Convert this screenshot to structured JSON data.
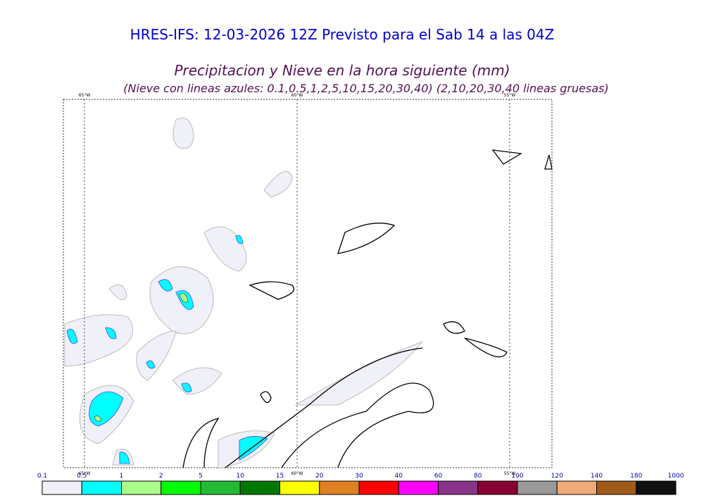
{
  "header": {
    "title": "HRES-IFS: 12-03-2026 12Z Previsto para el Sab 14 a las 04Z",
    "subtitle": "Precipitacion y Nieve en la hora siguiente (mm)",
    "note": "(Nieve con lineas azules: 0.1,0.5,1,2,5,10,15,20,30,40)  (2,10,20,30,40 lineas gruesas)"
  },
  "map": {
    "meridians": [
      "65°W",
      "60°W",
      "55°W"
    ]
  },
  "legend": {
    "labels": [
      0.1,
      0.5,
      1,
      2,
      5,
      10,
      15,
      20,
      30,
      40,
      60,
      80,
      100,
      120,
      140,
      180,
      1000
    ],
    "colors": [
      "#f0f0f8",
      "#00ffff",
      "#aaff88",
      "#00ff00",
      "#22bb33",
      "#007700",
      "#ffff00",
      "#e08020",
      "#ff0000",
      "#ff00ff",
      "#883388",
      "#880033",
      "#999999",
      "#eeaa77",
      "#a05a1a",
      "#111111"
    ]
  }
}
